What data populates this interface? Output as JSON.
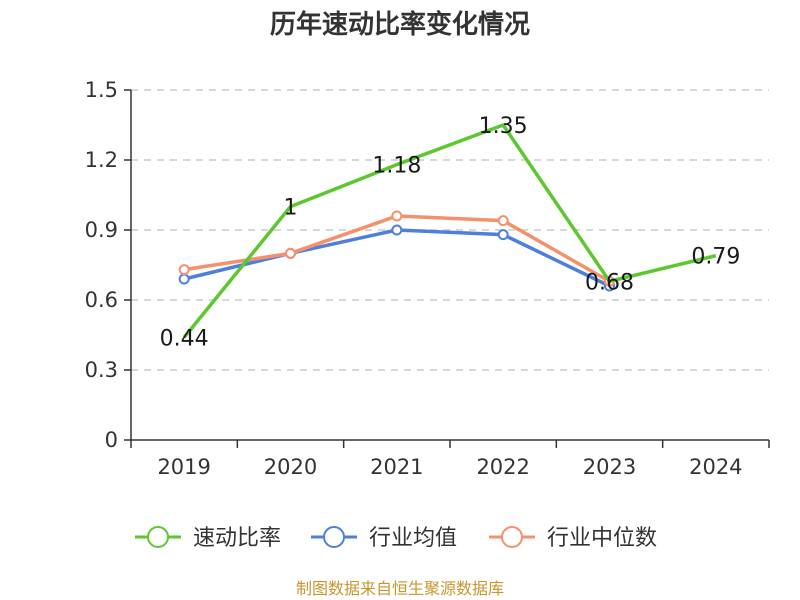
{
  "chart_data": {
    "type": "line",
    "title": "历年速动比率变化情况",
    "categories": [
      "2019",
      "2020",
      "2021",
      "2022",
      "2023",
      "2024"
    ],
    "ylim": [
      0,
      1.5
    ],
    "yticks": [
      "0",
      "0.3",
      "0.6",
      "0.9",
      "1.2",
      "1.5"
    ],
    "grid": true,
    "legend_position": "bottom",
    "series": [
      {
        "name": "速动比率",
        "color": "#5cc72e",
        "values": [
          0.44,
          1.0,
          1.18,
          1.35,
          0.68,
          0.79
        ],
        "labels": [
          "0.44",
          "1",
          "1.18",
          "1.35",
          "0.68",
          "0.79"
        ],
        "markers": false
      },
      {
        "name": "行业均值",
        "color": "#4f7fdc",
        "values": [
          0.69,
          0.8,
          0.9,
          0.88,
          0.66,
          null
        ],
        "markers": true
      },
      {
        "name": "行业中位数",
        "color": "#f5906a",
        "values": [
          0.73,
          0.8,
          0.96,
          0.94,
          0.68,
          null
        ],
        "markers": true
      }
    ],
    "source": "制图数据来自恒生聚源数据库"
  }
}
